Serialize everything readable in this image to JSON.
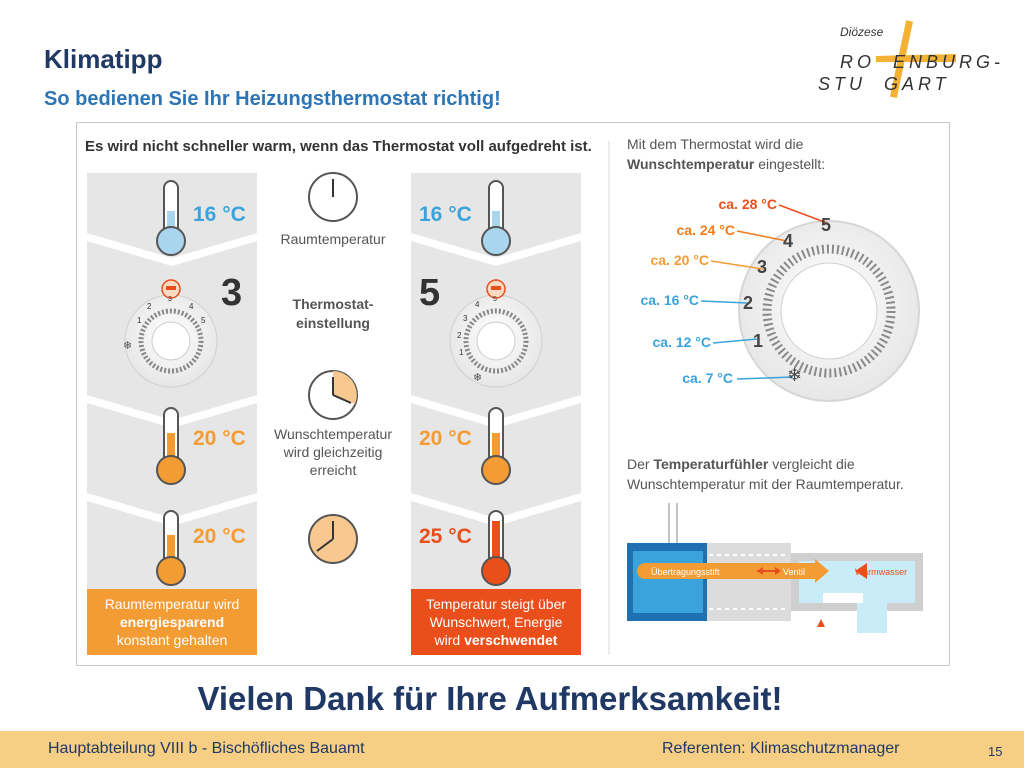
{
  "header": {
    "title": "Klimatipp",
    "subtitle": "So bedienen Sie Ihr Heizungsthermostat richtig!"
  },
  "logo": {
    "line1": "Diözese",
    "line2": "RO  ENBURG-",
    "line3": "STU  GART"
  },
  "infographic": {
    "headline": "Es wird nicht schneller warm, wenn das Thermostat voll aufgedreht ist.",
    "left_column": {
      "temp_top": "16 °C",
      "setting": "3",
      "temp_mid": "20 °C",
      "temp_bottom": "20 °C",
      "dial_numbers": [
        "1",
        "2",
        "3",
        "4",
        "5"
      ],
      "result_line1": "Raumtemperatur wird",
      "result_line2": "energiesparend",
      "result_line3": "konstant gehalten"
    },
    "middle_column": {
      "label_room": "Raumtemperatur",
      "label_setting_1": "Thermostat-",
      "label_setting_2": "einstellung",
      "label_target_1": "Wunschtemperatur",
      "label_target_2": "wird gleichzeitig",
      "label_target_3": "erreicht"
    },
    "right_column": {
      "temp_top": "16 °C",
      "setting": "5",
      "temp_mid": "20 °C",
      "temp_bottom": "25 °C",
      "dial_numbers": [
        "1",
        "2",
        "3",
        "4",
        "5"
      ],
      "result_line1": "Temperatur steigt über",
      "result_line2": "Wunschwert, Energie",
      "result_line3_pre": "wird ",
      "result_line3_bold": "verschwendet"
    },
    "dial_panel": {
      "intro_line1": "Mit dem Thermostat wird die",
      "intro_bold": "Wunschtemperatur",
      "intro_rest": " eingestellt:",
      "levels": [
        {
          "label": "ca. 28 °C",
          "number": "5",
          "color": "#e94e1b"
        },
        {
          "label": "ca. 24 °C",
          "number": "4",
          "color": "#f07c1b"
        },
        {
          "label": "ca. 20 °C",
          "number": "3",
          "color": "#f39c34"
        },
        {
          "label": "ca. 16 °C",
          "number": "2",
          "color": "#3aa3dc"
        },
        {
          "label": "ca. 12 °C",
          "number": "1",
          "color": "#3aa3dc"
        },
        {
          "label": "ca. 7 °C",
          "number": "❄",
          "color": "#3aa3dc"
        }
      ]
    },
    "sensor_panel": {
      "line1_pre": "Der ",
      "line1_bold": "Temperaturfühler",
      "line1_rest": " vergleicht die",
      "line2": "Wunschtemperatur mit der Raumtemperatur.",
      "label_pin": "Übertragungsstift",
      "label_valve": "Ventil",
      "label_water": "Warmwasser"
    }
  },
  "thanks": "Vielen Dank für Ihre Aufmerksamkeit!",
  "footer": {
    "left": "Hauptabteilung VIII b - Bischöfliches Bauamt",
    "right": "Referenten: Klimaschutzmanager",
    "page": "15"
  },
  "colors": {
    "title": "#1f3864",
    "subtitle": "#2e75b6",
    "orange": "#f39c34",
    "deep_orange": "#e94e1b",
    "blue": "#3aa3dc",
    "footer_bg": "#f6cf85"
  }
}
